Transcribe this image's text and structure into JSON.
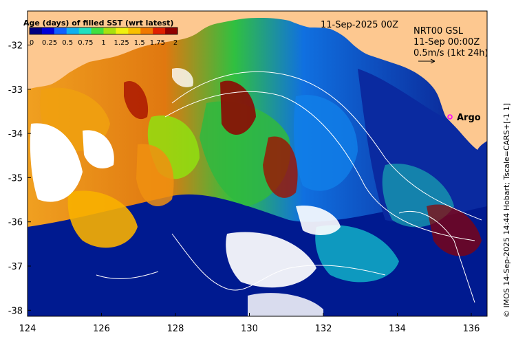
{
  "colorbar": {
    "title": "Age (days) of filled SST (wrt latest)",
    "ticks": [
      "0",
      "0.25",
      "0.5",
      "0.75",
      "1",
      "1.25",
      "1.5",
      "1.75",
      "2"
    ],
    "colors": [
      "#000080",
      "#0000d8",
      "#1060ff",
      "#10b0f0",
      "#20e0c0",
      "#40e040",
      "#a8e010",
      "#f0f010",
      "#f8c000",
      "#f07800",
      "#e02000",
      "#900000"
    ]
  },
  "map": {
    "date_label": "11-Sep-2025 00Z",
    "product_lines": [
      "NRT00 GSL",
      "11-Sep 00:00Z",
      "0.5m/s (1kt 24h)"
    ],
    "argo_label": "Argo",
    "argo_marker_color": "#ff00ff",
    "land_color": "#fdc890",
    "x_ticks": [
      "124",
      "126",
      "128",
      "130",
      "132",
      "134",
      "136"
    ],
    "y_ticks": [
      "-32",
      "-33",
      "-34",
      "-35",
      "-36",
      "-37",
      "-38"
    ],
    "credit": "© IMOS 14-Sep-2025 14:44 Hobart; Tscale=CARS+[-1 1]"
  }
}
